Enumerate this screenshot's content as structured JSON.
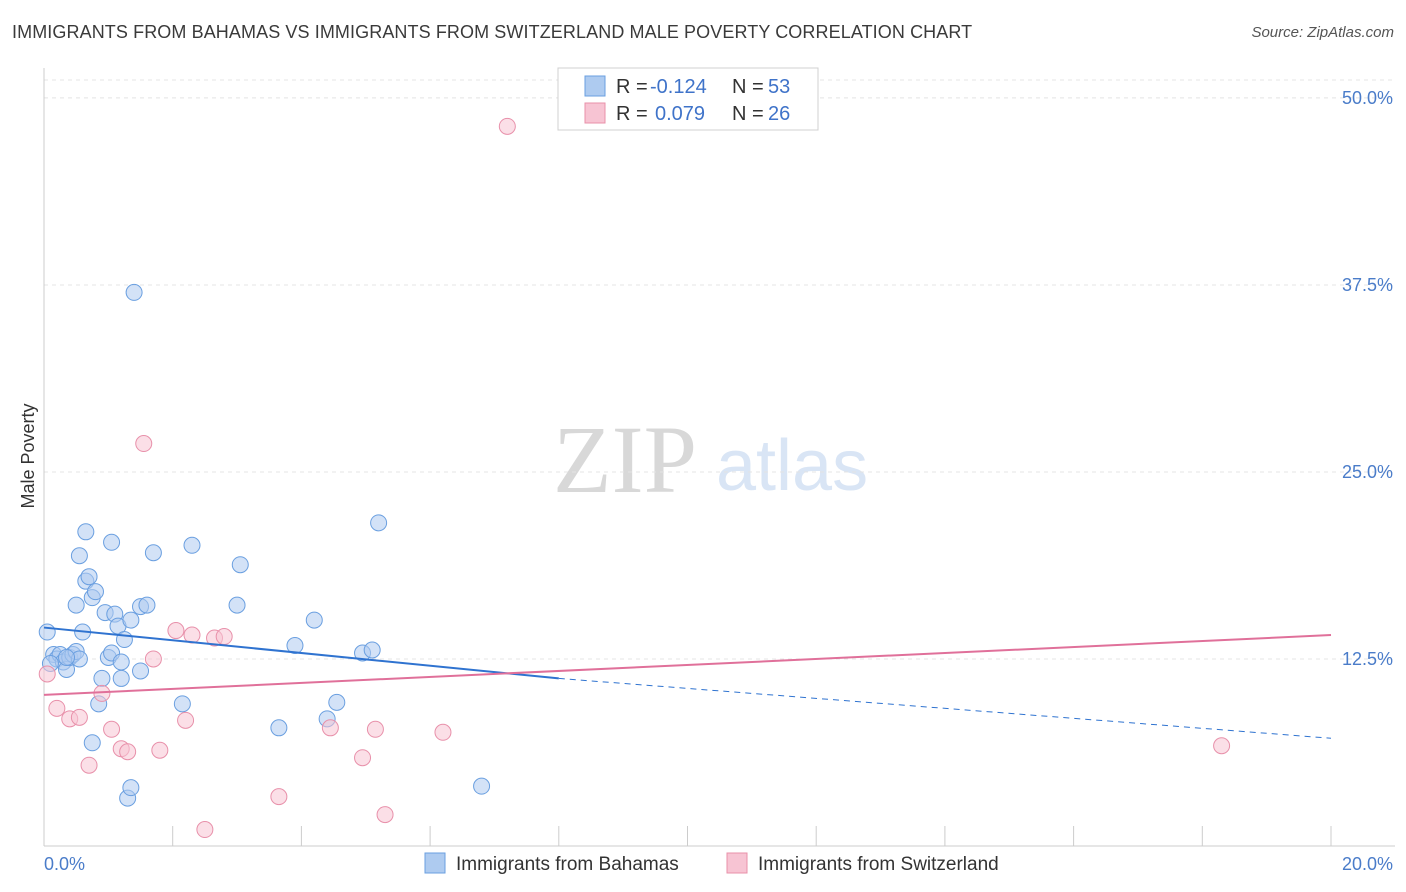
{
  "chart_data": {
    "type": "scatter",
    "title": "IMMIGRANTS FROM BAHAMAS VS IMMIGRANTS FROM SWITZERLAND MALE POVERTY CORRELATION CHART",
    "source": "Source: ZipAtlas.com",
    "xlabel": "",
    "ylabel": "Male Poverty",
    "xlim": [
      0,
      20
    ],
    "ylim": [
      0,
      52
    ],
    "x_tick_labels": [
      "0.0%",
      "20.0%"
    ],
    "y_ticks": [
      12.5,
      25.0,
      37.5,
      50.0
    ],
    "y_tick_labels": [
      "12.5%",
      "25.0%",
      "37.5%",
      "50.0%"
    ],
    "watermark": {
      "zip": "ZIP",
      "atlas": "atlas"
    },
    "legend": {
      "rows": [
        {
          "r_label": "R =",
          "r_value": "-0.124",
          "n_label": "N =",
          "n_value": "53"
        },
        {
          "r_label": "R =",
          "r_value": "0.079",
          "n_label": "N =",
          "n_value": "26"
        }
      ]
    },
    "series": [
      {
        "name": "Immigrants from Bahamas",
        "color": "#6a9fe0",
        "fill": "#aecbf0",
        "line_color": "#2f73d0",
        "trend": {
          "x0": 0,
          "y0": 14.6,
          "x1": 8.0,
          "y1": 11.2,
          "x_dash_end": 20,
          "y_dash_end": 7.2
        },
        "points": [
          [
            0.05,
            14.3
          ],
          [
            0.15,
            12.8
          ],
          [
            0.2,
            12.5
          ],
          [
            0.25,
            12.8
          ],
          [
            0.3,
            12.3
          ],
          [
            0.35,
            11.8
          ],
          [
            0.4,
            12.6
          ],
          [
            0.45,
            12.8
          ],
          [
            0.5,
            16.1
          ],
          [
            0.55,
            19.4
          ],
          [
            0.5,
            13.0
          ],
          [
            0.6,
            14.3
          ],
          [
            0.55,
            12.5
          ],
          [
            0.65,
            17.7
          ],
          [
            0.7,
            18.0
          ],
          [
            0.65,
            21.0
          ],
          [
            0.75,
            16.6
          ],
          [
            0.8,
            17.0
          ],
          [
            0.85,
            9.5
          ],
          [
            0.75,
            6.9
          ],
          [
            0.9,
            11.2
          ],
          [
            0.95,
            15.6
          ],
          [
            1.0,
            12.6
          ],
          [
            1.05,
            12.9
          ],
          [
            1.05,
            20.3
          ],
          [
            1.1,
            15.5
          ],
          [
            1.15,
            14.7
          ],
          [
            1.2,
            12.3
          ],
          [
            1.2,
            11.2
          ],
          [
            1.25,
            13.8
          ],
          [
            1.3,
            3.2
          ],
          [
            1.35,
            3.9
          ],
          [
            1.35,
            15.1
          ],
          [
            1.4,
            37.0
          ],
          [
            1.5,
            16.0
          ],
          [
            1.5,
            11.7
          ],
          [
            1.6,
            16.1
          ],
          [
            1.7,
            19.6
          ],
          [
            2.15,
            9.5
          ],
          [
            2.3,
            20.1
          ],
          [
            3.0,
            16.1
          ],
          [
            3.05,
            18.8
          ],
          [
            3.65,
            7.9
          ],
          [
            3.9,
            13.4
          ],
          [
            4.2,
            15.1
          ],
          [
            4.4,
            8.5
          ],
          [
            4.55,
            9.6
          ],
          [
            4.95,
            12.9
          ],
          [
            5.1,
            13.1
          ],
          [
            5.2,
            21.6
          ],
          [
            6.8,
            4.0
          ],
          [
            0.1,
            12.2
          ],
          [
            0.35,
            12.6
          ]
        ]
      },
      {
        "name": "Immigrants from Switzerland",
        "color": "#e890aa",
        "fill": "#f7c4d3",
        "line_color": "#e0709a",
        "trend": {
          "x0": 0,
          "y0": 10.1,
          "x1": 20,
          "y1": 14.1
        },
        "points": [
          [
            0.05,
            11.5
          ],
          [
            0.2,
            9.2
          ],
          [
            0.4,
            8.5
          ],
          [
            0.55,
            8.6
          ],
          [
            0.7,
            5.4
          ],
          [
            0.9,
            10.2
          ],
          [
            1.05,
            7.8
          ],
          [
            1.2,
            6.5
          ],
          [
            1.3,
            6.3
          ],
          [
            1.55,
            26.9
          ],
          [
            1.7,
            12.5
          ],
          [
            1.8,
            6.4
          ],
          [
            2.05,
            14.4
          ],
          [
            2.2,
            8.4
          ],
          [
            2.3,
            14.1
          ],
          [
            2.5,
            1.1
          ],
          [
            2.65,
            13.9
          ],
          [
            2.8,
            14.0
          ],
          [
            3.65,
            3.3
          ],
          [
            4.45,
            7.9
          ],
          [
            4.95,
            5.9
          ],
          [
            5.15,
            7.8
          ],
          [
            5.3,
            2.1
          ],
          [
            6.2,
            7.6
          ],
          [
            7.2,
            48.1
          ],
          [
            18.3,
            6.7
          ]
        ]
      }
    ]
  }
}
